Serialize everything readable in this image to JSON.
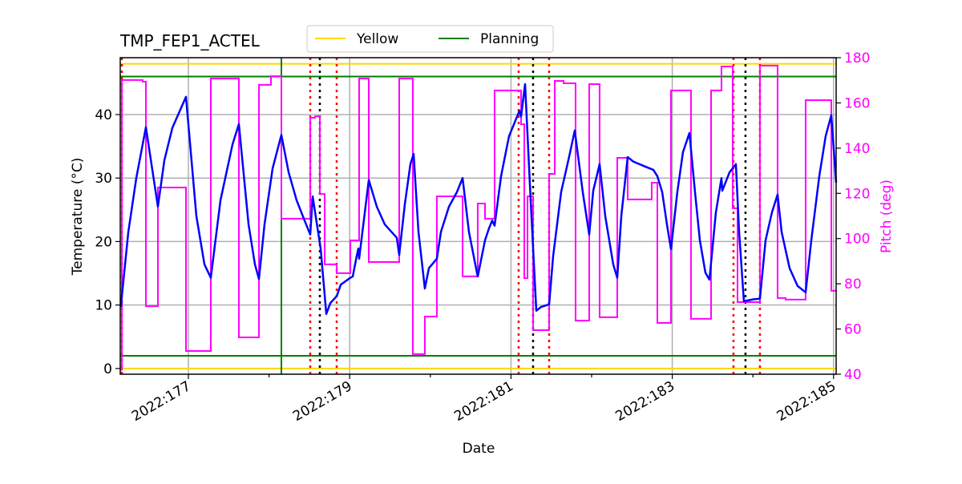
{
  "chart_data": {
    "type": "line",
    "title": "TMP_FEP1_ACTEL",
    "xlabel": "Date",
    "ylabel": "Temperature (°C)",
    "y2label": "Pitch (deg)",
    "xlim": [
      176.155,
      185.032
    ],
    "ylim": [
      -0.9,
      48.96
    ],
    "y2lim": [
      40,
      180
    ],
    "grid": true,
    "legend_position": "top-center",
    "x_major_ticks": [
      177,
      179,
      181,
      183,
      185
    ],
    "x_tick_labels": [
      "2022:177",
      "2022:179",
      "2022:181",
      "2022:183",
      "2022:185"
    ],
    "x_minor_ticks": [
      177,
      178,
      179,
      180,
      181,
      182,
      183,
      184,
      185
    ],
    "y_ticks": [
      0,
      10,
      20,
      30,
      40
    ],
    "y_tick_labels": [
      "0",
      "10",
      "20",
      "30",
      "40"
    ],
    "y2_ticks": [
      40,
      60,
      80,
      100,
      120,
      140,
      160,
      180
    ],
    "y2_tick_labels": [
      "40",
      "60",
      "80",
      "100",
      "120",
      "140",
      "160",
      "180"
    ],
    "colors": {
      "temperature": "#0000ff",
      "pitch": "#ff00ff",
      "yellow": "#ffd700",
      "planning": "#008000",
      "red_marker": "#ff0000",
      "black_marker": "#000000",
      "pitch_axis": "#ff00ff"
    },
    "limits": [
      {
        "name": "Yellow",
        "color": "#ffd700",
        "values": [
          48,
          0
        ]
      },
      {
        "name": "Planning",
        "color": "#008000",
        "values": [
          46,
          2
        ]
      }
    ],
    "planning_vertical": [
      178.153
    ],
    "red_dotted_lines": [
      176.175,
      178.511,
      178.839,
      181.095,
      181.473,
      183.759,
      184.087
    ],
    "black_dotted_lines": [
      178.63,
      181.274,
      183.908
    ],
    "temperature": [
      [
        176.165,
        9.7
      ],
      [
        176.175,
        11.4
      ],
      [
        176.255,
        21.5
      ],
      [
        176.354,
        30.0
      ],
      [
        176.473,
        38.0
      ],
      [
        176.622,
        25.5
      ],
      [
        176.702,
        32.8
      ],
      [
        176.801,
        37.9
      ],
      [
        176.97,
        42.8
      ],
      [
        177.099,
        24.0
      ],
      [
        177.199,
        16.4
      ],
      [
        177.278,
        14.3
      ],
      [
        177.398,
        26.5
      ],
      [
        177.547,
        35.3
      ],
      [
        177.626,
        38.5
      ],
      [
        177.746,
        22.7
      ],
      [
        177.825,
        16.4
      ],
      [
        177.875,
        14.1
      ],
      [
        177.944,
        22.7
      ],
      [
        178.044,
        31.5
      ],
      [
        178.153,
        36.8
      ],
      [
        178.243,
        30.9
      ],
      [
        178.342,
        26.5
      ],
      [
        178.441,
        23.3
      ],
      [
        178.511,
        21.1
      ],
      [
        178.541,
        27.1
      ],
      [
        178.64,
        18.9
      ],
      [
        178.71,
        8.6
      ],
      [
        178.76,
        10.3
      ],
      [
        178.839,
        11.4
      ],
      [
        178.889,
        13.2
      ],
      [
        179.008,
        14.3
      ],
      [
        179.038,
        14.5
      ],
      [
        179.087,
        17.7
      ],
      [
        179.107,
        18.9
      ],
      [
        179.117,
        17.3
      ],
      [
        179.237,
        29.7
      ],
      [
        179.336,
        25.5
      ],
      [
        179.435,
        22.7
      ],
      [
        179.584,
        20.6
      ],
      [
        179.614,
        17.9
      ],
      [
        179.684,
        25.9
      ],
      [
        179.753,
        32.2
      ],
      [
        179.793,
        33.8
      ],
      [
        179.853,
        21.5
      ],
      [
        179.932,
        12.6
      ],
      [
        179.982,
        15.8
      ],
      [
        180.081,
        17.3
      ],
      [
        180.131,
        21.5
      ],
      [
        180.231,
        25.5
      ],
      [
        180.33,
        27.8
      ],
      [
        180.4,
        30.0
      ],
      [
        180.479,
        21.5
      ],
      [
        180.578,
        15.1
      ],
      [
        180.588,
        14.5
      ],
      [
        180.678,
        20.2
      ],
      [
        180.728,
        22.1
      ],
      [
        180.767,
        23.3
      ],
      [
        180.797,
        22.5
      ],
      [
        180.877,
        30.3
      ],
      [
        180.976,
        36.6
      ],
      [
        181.105,
        40.6
      ],
      [
        181.125,
        39.7
      ],
      [
        181.175,
        44.8
      ],
      [
        181.244,
        26.5
      ],
      [
        181.314,
        9.1
      ],
      [
        181.374,
        9.7
      ],
      [
        181.473,
        10.1
      ],
      [
        181.523,
        17.7
      ],
      [
        181.622,
        27.8
      ],
      [
        181.722,
        33.4
      ],
      [
        181.791,
        37.5
      ],
      [
        181.89,
        27.8
      ],
      [
        181.97,
        21.1
      ],
      [
        182.02,
        28.0
      ],
      [
        182.099,
        32.2
      ],
      [
        182.169,
        24.0
      ],
      [
        182.268,
        16.4
      ],
      [
        182.318,
        14.3
      ],
      [
        182.368,
        24.0
      ],
      [
        182.447,
        33.3
      ],
      [
        182.517,
        32.6
      ],
      [
        182.666,
        31.8
      ],
      [
        182.765,
        31.3
      ],
      [
        182.815,
        30.3
      ],
      [
        182.875,
        27.8
      ],
      [
        182.934,
        22.7
      ],
      [
        182.984,
        18.8
      ],
      [
        183.063,
        27.8
      ],
      [
        183.133,
        34.1
      ],
      [
        183.213,
        37.1
      ],
      [
        183.282,
        27.8
      ],
      [
        183.342,
        20.2
      ],
      [
        183.411,
        15.1
      ],
      [
        183.461,
        14.0
      ],
      [
        183.541,
        24.6
      ],
      [
        183.61,
        30.0
      ],
      [
        183.62,
        28.0
      ],
      [
        183.71,
        30.9
      ],
      [
        183.789,
        32.2
      ],
      [
        183.829,
        21.5
      ],
      [
        183.888,
        10.6
      ],
      [
        184.008,
        10.9
      ],
      [
        184.087,
        11.0
      ],
      [
        184.157,
        20.2
      ],
      [
        184.236,
        24.6
      ],
      [
        184.306,
        27.4
      ],
      [
        184.356,
        21.5
      ],
      [
        184.455,
        15.8
      ],
      [
        184.554,
        13.0
      ],
      [
        184.654,
        12.0
      ],
      [
        184.724,
        20.2
      ],
      [
        184.823,
        30.3
      ],
      [
        184.902,
        36.6
      ],
      [
        184.972,
        39.9
      ],
      [
        185.032,
        29.3
      ]
    ],
    "pitch_steps": [
      [
        176.155,
        42
      ],
      [
        176.175,
        170.1
      ],
      [
        176.433,
        169.4
      ],
      [
        176.473,
        70.1
      ],
      [
        176.622,
        122.6
      ],
      [
        176.97,
        50.3
      ],
      [
        177.278,
        170.8
      ],
      [
        177.626,
        56.3
      ],
      [
        177.875,
        168
      ],
      [
        178.024,
        171.8
      ],
      [
        178.153,
        108.8
      ],
      [
        178.511,
        153.4
      ],
      [
        178.571,
        154.1
      ],
      [
        178.63,
        119.7
      ],
      [
        178.69,
        88.6
      ],
      [
        178.839,
        84.7
      ],
      [
        179.008,
        99.2
      ],
      [
        179.117,
        170.8
      ],
      [
        179.237,
        89.6
      ],
      [
        179.614,
        170.8
      ],
      [
        179.783,
        48.9
      ],
      [
        179.932,
        65.5
      ],
      [
        180.081,
        118.7
      ],
      [
        180.4,
        83.3
      ],
      [
        180.588,
        115.5
      ],
      [
        180.678,
        108.8
      ],
      [
        180.797,
        165.5
      ],
      [
        181.125,
        150.6
      ],
      [
        181.165,
        82.5
      ],
      [
        181.205,
        118.7
      ],
      [
        181.274,
        59.5
      ],
      [
        181.473,
        128.6
      ],
      [
        181.543,
        169.7
      ],
      [
        181.652,
        168.7
      ],
      [
        181.801,
        63.7
      ],
      [
        181.97,
        168.3
      ],
      [
        182.099,
        65.2
      ],
      [
        182.318,
        135.7
      ],
      [
        182.447,
        117.3
      ],
      [
        182.745,
        124.7
      ],
      [
        182.815,
        62.7
      ],
      [
        182.984,
        165.5
      ],
      [
        183.232,
        64.5
      ],
      [
        183.481,
        165.5
      ],
      [
        183.61,
        176.1
      ],
      [
        183.749,
        113.4
      ],
      [
        183.809,
        71.9
      ],
      [
        184.087,
        176.5
      ],
      [
        184.306,
        73.7
      ],
      [
        184.405,
        73.0
      ],
      [
        184.654,
        161.2
      ],
      [
        184.972,
        76.9
      ],
      [
        185.032,
        76.9
      ]
    ]
  }
}
